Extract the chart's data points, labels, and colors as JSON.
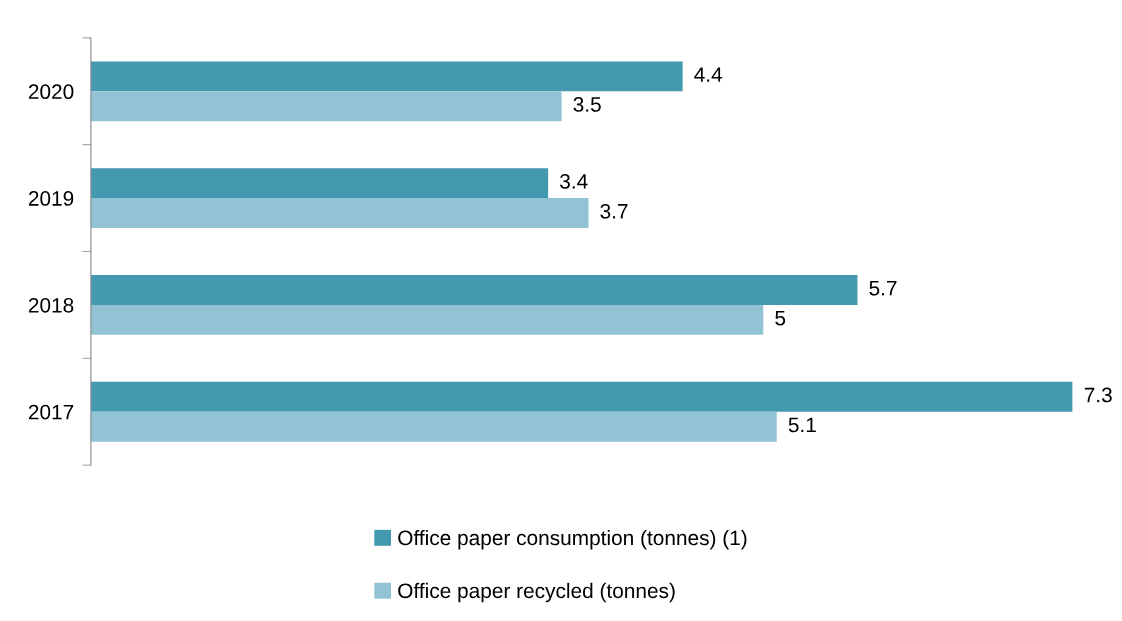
{
  "chart_data": {
    "type": "bar",
    "orientation": "horizontal",
    "categories": [
      "2020",
      "2019",
      "2018",
      "2017"
    ],
    "series": [
      {
        "name": "Office paper consumption (tonnes) (1)",
        "color": "#4399b0",
        "values": [
          4.4,
          3.4,
          5.7,
          7.3
        ]
      },
      {
        "name": "Office paper recycled (tonnes)",
        "color": "#92c3d5",
        "values": [
          3.5,
          3.7,
          5,
          5.1
        ]
      }
    ],
    "xlim": [
      0,
      7.3
    ],
    "tick_labels": "y",
    "data_labels": true,
    "legend": "bottom",
    "grid": false
  }
}
